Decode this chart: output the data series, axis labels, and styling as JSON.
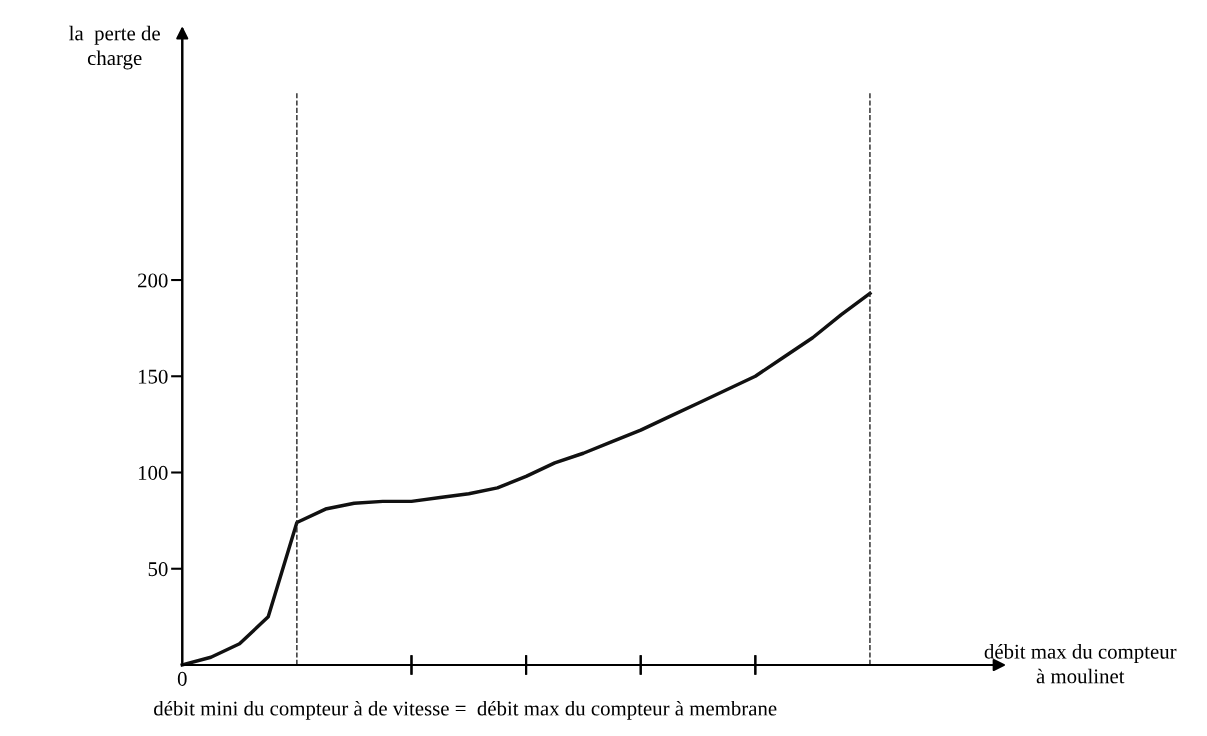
{
  "chart_data": {
    "type": "line",
    "ylabel": "la  perte de\ncharge",
    "xlabel": "débit max du compteur\nà moulinet",
    "annotations": [
      "0",
      "débit mini du compteur à de vitesse =  débit max du compteur à membrane"
    ],
    "categories": [
      null,
      null,
      null,
      null,
      null,
      null,
      null,
      null,
      null,
      null,
      null,
      null,
      null,
      null,
      null,
      null,
      null,
      null,
      null,
      null,
      null,
      null,
      null,
      null,
      null
    ],
    "series": [
      {
        "color": "#111111",
        "values": [
          0,
          4,
          11,
          25,
          74,
          81,
          84,
          85,
          85,
          87,
          89,
          92,
          98,
          105,
          110,
          116,
          122,
          129,
          136,
          143,
          150,
          160,
          170,
          182,
          193
        ]
      }
    ],
    "ylim": [
      0,
      330
    ],
    "yticks": [
      50,
      100,
      150,
      200
    ],
    "grid": false,
    "legend": false,
    "marker": "none",
    "line_style": "solid"
  }
}
